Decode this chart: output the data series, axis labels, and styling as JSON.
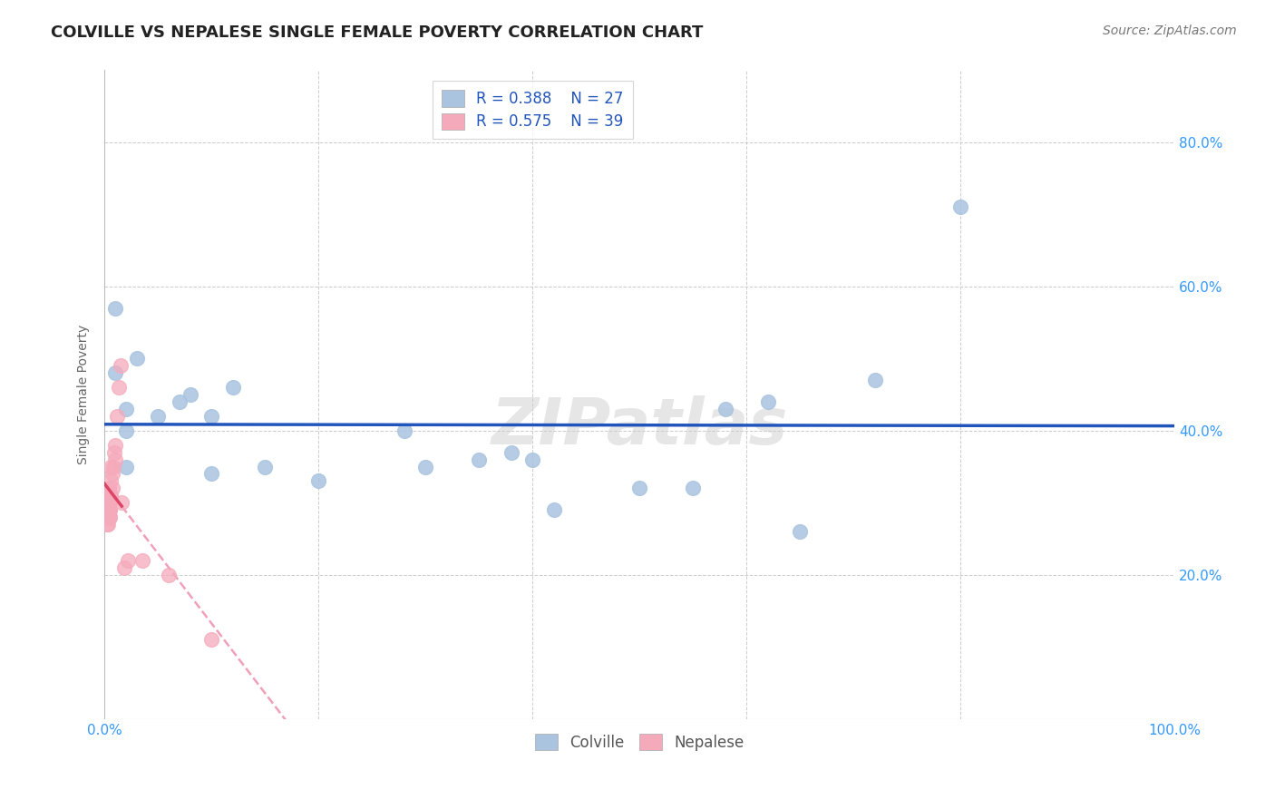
{
  "title": "COLVILLE VS NEPALESE SINGLE FEMALE POVERTY CORRELATION CHART",
  "source": "Source: ZipAtlas.com",
  "xlabel": "",
  "ylabel": "Single Female Poverty",
  "xlim": [
    0.0,
    1.0
  ],
  "ylim": [
    0.0,
    0.9
  ],
  "xticks": [
    0.0,
    0.2,
    0.4,
    0.6,
    0.8,
    1.0
  ],
  "yticks": [
    0.0,
    0.2,
    0.4,
    0.6,
    0.8
  ],
  "xtick_labels": [
    "0.0%",
    "",
    "",
    "",
    "",
    "100.0%"
  ],
  "ytick_labels_right": [
    "20.0%",
    "40.0%",
    "60.0%",
    "80.0%"
  ],
  "watermark": "ZIPatlas",
  "colville_color": "#aac4e0",
  "nepalese_color": "#f5aabb",
  "colville_line_color": "#2255bb",
  "nepalese_line_color": "#dd4466",
  "nepalese_dashed_color": "#f0a0b8",
  "R_colville": 0.388,
  "N_colville": 27,
  "R_nepalese": 0.575,
  "N_nepalese": 39,
  "colville_x": [
    0.01,
    0.01,
    0.02,
    0.02,
    0.02,
    0.03,
    0.05,
    0.07,
    0.08,
    0.1,
    0.1,
    0.12,
    0.15,
    0.2,
    0.28,
    0.3,
    0.35,
    0.38,
    0.4,
    0.42,
    0.5,
    0.55,
    0.58,
    0.62,
    0.65,
    0.72,
    0.8
  ],
  "colville_y": [
    0.57,
    0.48,
    0.43,
    0.4,
    0.35,
    0.5,
    0.42,
    0.44,
    0.45,
    0.42,
    0.34,
    0.46,
    0.35,
    0.33,
    0.4,
    0.35,
    0.36,
    0.37,
    0.36,
    0.29,
    0.32,
    0.32,
    0.43,
    0.44,
    0.26,
    0.47,
    0.71
  ],
  "nepalese_x": [
    0.002,
    0.002,
    0.002,
    0.003,
    0.003,
    0.003,
    0.003,
    0.003,
    0.004,
    0.004,
    0.004,
    0.004,
    0.004,
    0.004,
    0.005,
    0.005,
    0.005,
    0.005,
    0.005,
    0.005,
    0.005,
    0.006,
    0.006,
    0.006,
    0.007,
    0.007,
    0.008,
    0.009,
    0.01,
    0.01,
    0.012,
    0.013,
    0.015,
    0.016,
    0.018,
    0.022,
    0.035,
    0.06,
    0.1
  ],
  "nepalese_y": [
    0.3,
    0.29,
    0.27,
    0.3,
    0.29,
    0.29,
    0.28,
    0.27,
    0.32,
    0.31,
    0.3,
    0.29,
    0.28,
    0.28,
    0.31,
    0.31,
    0.3,
    0.29,
    0.29,
    0.28,
    0.28,
    0.35,
    0.33,
    0.31,
    0.34,
    0.32,
    0.35,
    0.37,
    0.38,
    0.36,
    0.42,
    0.46,
    0.49,
    0.3,
    0.21,
    0.22,
    0.22,
    0.2,
    0.11
  ],
  "grid_color": "#cccccc",
  "background_color": "#ffffff",
  "title_fontsize": 13,
  "axis_label_fontsize": 10,
  "tick_fontsize": 11,
  "legend_fontsize": 12,
  "source_fontsize": 10
}
